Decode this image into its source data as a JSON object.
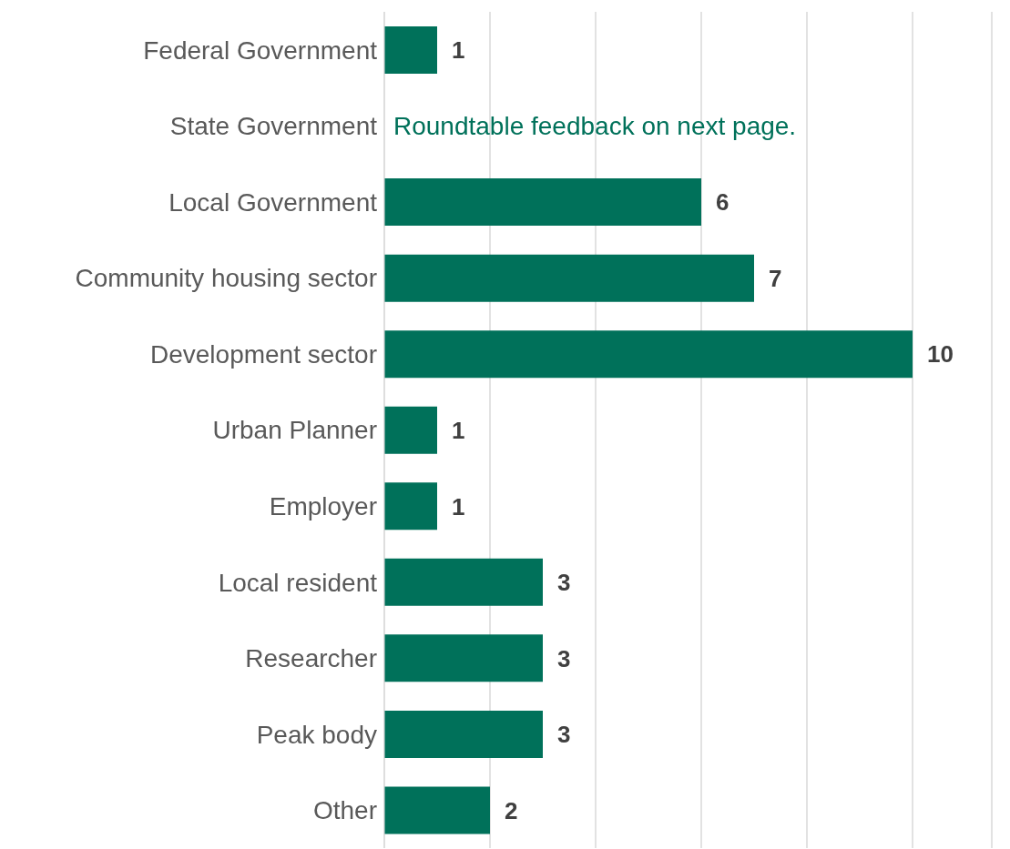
{
  "chart_data": {
    "type": "bar",
    "orientation": "horizontal",
    "categories": [
      "Federal Government",
      "State Government",
      "Local Government",
      "Community housing sector",
      "Development sector",
      "Urban Planner",
      "Employer",
      "Local resident",
      "Researcher",
      "Peak body",
      "Other"
    ],
    "values": [
      1,
      null,
      6,
      7,
      10,
      1,
      1,
      3,
      3,
      3,
      2
    ],
    "color": "#00715a",
    "xlim": [
      0,
      11.5
    ],
    "xticks": [
      {
        "value": 0,
        "label": null
      },
      {
        "value": 2,
        "label": null
      },
      {
        "value": 4,
        "label": null
      },
      {
        "value": 6,
        "label": null
      },
      {
        "value": 8,
        "label": null
      },
      {
        "value": 10,
        "label": null
      }
    ],
    "tick_labels": "y",
    "grid": "x",
    "data_labels": true,
    "annotations": [
      "Roundtable feedback on next page."
    ]
  }
}
